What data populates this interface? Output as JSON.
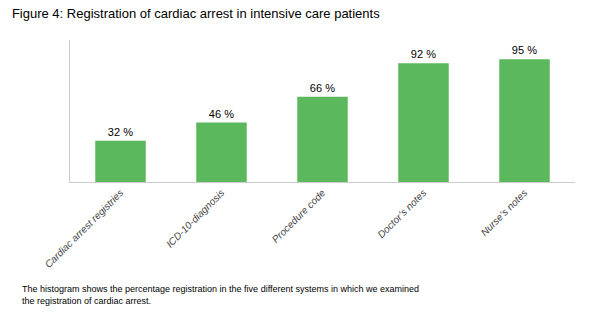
{
  "chart_data": {
    "type": "bar",
    "title": "Figure 4: Registration of cardiac arrest in intensive care patients",
    "caption": "The histogram shows the percentage registration in the five different systems in which we examined the registration of cardiac arrest.",
    "categories": [
      "Cardiac arrest registries",
      "ICD-10-diagnosis",
      "Procedure code",
      "Doctor’s notes",
      "Nurse’s notes"
    ],
    "values": [
      32,
      46,
      66,
      92,
      95
    ],
    "value_labels": [
      "32 %",
      "46 %",
      "66 %",
      "92 %",
      "95 %"
    ],
    "data_labels": true,
    "color": "#5cb85c",
    "ylim": [
      0,
      110
    ],
    "grid": false,
    "tick_labels": "x"
  }
}
